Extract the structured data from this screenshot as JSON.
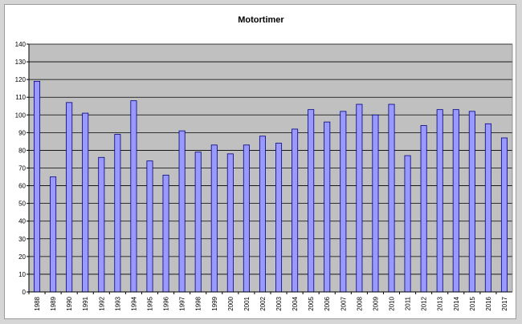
{
  "chart_data": {
    "type": "bar",
    "title": "Motortimer",
    "xlabel": "",
    "ylabel": "",
    "ylim": [
      0,
      140
    ],
    "yticks": [
      0,
      10,
      20,
      30,
      40,
      50,
      60,
      70,
      80,
      90,
      100,
      110,
      120,
      130,
      140
    ],
    "grid": true,
    "legend": "none",
    "categories": [
      "1988",
      "1989",
      "1990",
      "1991",
      "1992",
      "1993",
      "1994",
      "1995",
      "1996",
      "1997",
      "1998",
      "1999",
      "2000",
      "2001",
      "2002",
      "2003",
      "2004",
      "2005",
      "2006",
      "2007",
      "2008",
      "2009",
      "2010",
      "2011",
      "2012",
      "2013",
      "2014",
      "2015",
      "2016",
      "2017"
    ],
    "values": [
      119,
      65,
      107,
      101,
      76,
      89,
      108,
      74,
      66,
      91,
      79,
      83,
      78,
      83,
      88,
      84,
      92,
      103,
      96,
      102,
      106,
      100,
      106,
      77,
      94,
      103,
      103,
      102,
      95,
      87
    ],
    "colors": {
      "bar_fill": "#9999ff",
      "bar_stroke": "#000080",
      "plot_bg": "#c0c0c0",
      "grid": "#000000"
    }
  }
}
